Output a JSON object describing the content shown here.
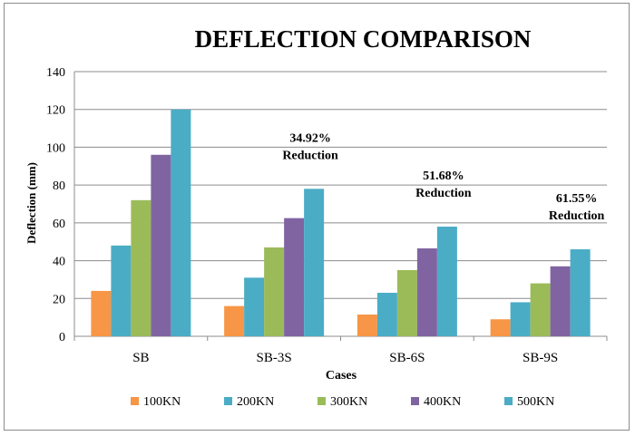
{
  "chart_data": {
    "type": "bar",
    "title": "DEFLECTION COMPARISON",
    "xlabel": "Cases",
    "ylabel": "Deflection (mm)",
    "ylim": [
      0,
      140
    ],
    "yticks": [
      0,
      20,
      40,
      60,
      80,
      100,
      120,
      140
    ],
    "grid": true,
    "legend_position": "bottom",
    "categories": [
      "SB",
      "SB-3S",
      "SB-6S",
      "SB-9S"
    ],
    "series": [
      {
        "name": "100KN",
        "color": "#f79646",
        "values": [
          24,
          16,
          11.5,
          9
        ]
      },
      {
        "name": "200KN",
        "color": "#4bacc6",
        "values": [
          48,
          31,
          23,
          18
        ]
      },
      {
        "name": "300KN",
        "color": "#9bbb59",
        "values": [
          72,
          47,
          35,
          28
        ]
      },
      {
        "name": "400KN",
        "color": "#8064a2",
        "values": [
          96,
          62.5,
          46.5,
          37
        ]
      },
      {
        "name": "500KN",
        "color": "#4bacc6",
        "values": [
          120,
          78,
          58,
          46
        ]
      }
    ],
    "annotations": [
      {
        "category": "SB-3S",
        "lines": [
          "34.92%",
          "Reduction"
        ]
      },
      {
        "category": "SB-6S",
        "lines": [
          "51.68%",
          "Reduction"
        ]
      },
      {
        "category": "SB-9S",
        "lines": [
          "61.55%",
          "Reduction"
        ]
      }
    ]
  }
}
